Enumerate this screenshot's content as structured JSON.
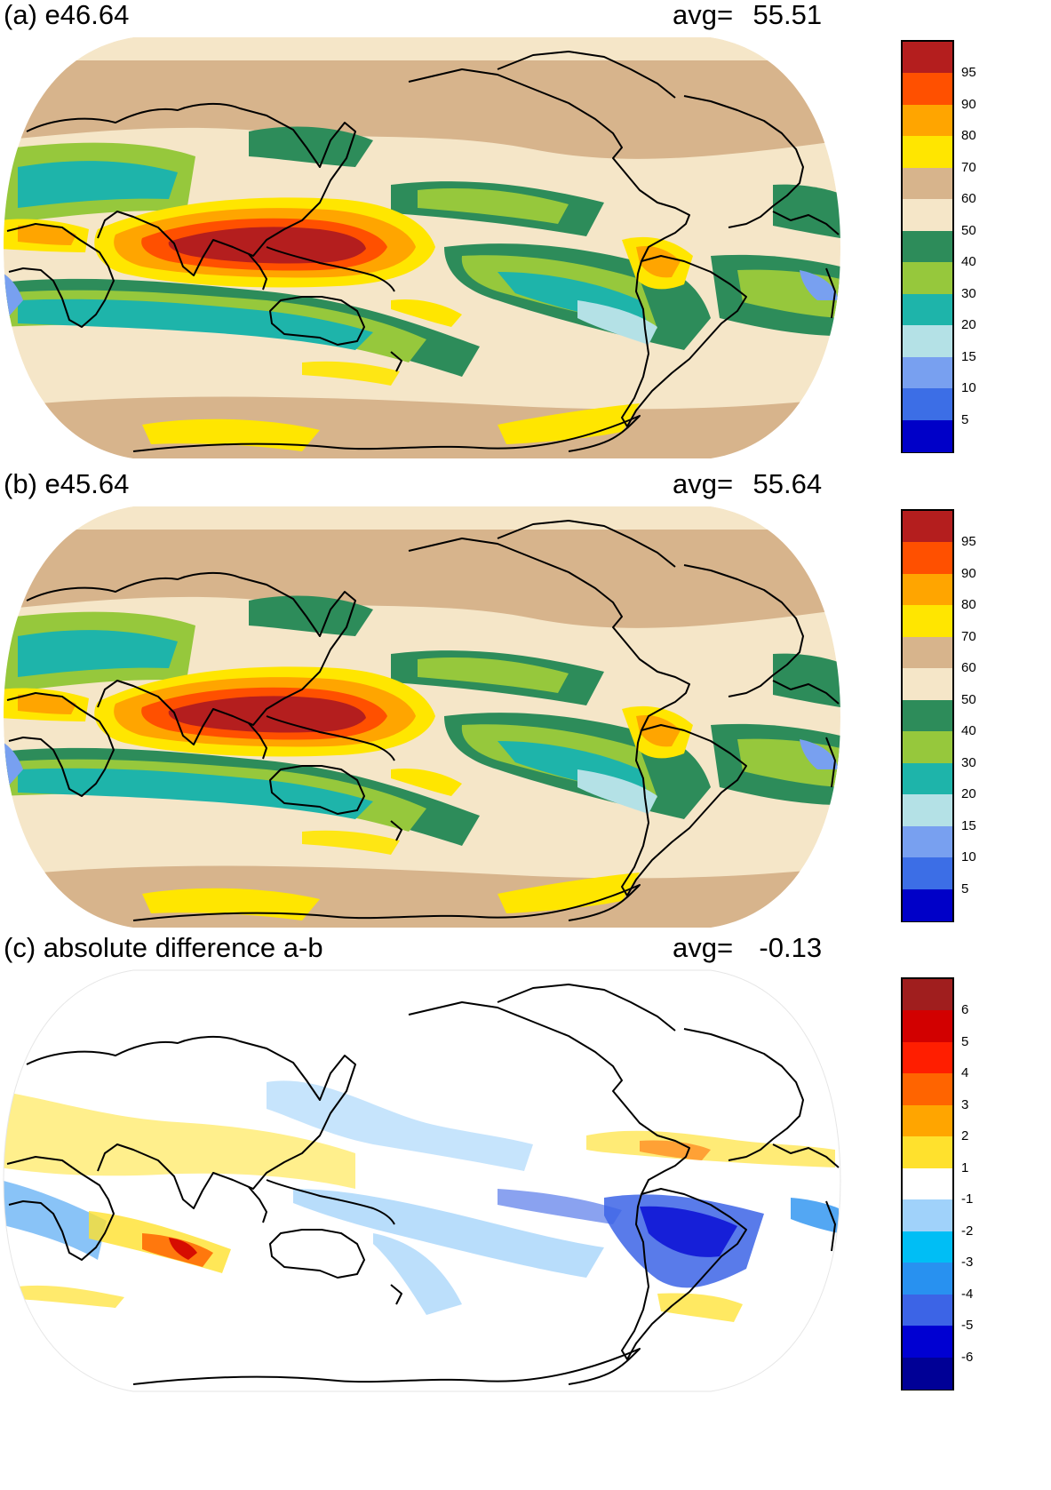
{
  "panels": [
    {
      "id": "a",
      "title": "(a) e46.64",
      "avg_label": "avg=",
      "avg_value": "55.51",
      "colorbar": {
        "colors": [
          "#0000c8",
          "#3c6ee6",
          "#78a0f0",
          "#b4e1e6",
          "#1eb4aa",
          "#96c83c",
          "#2d8c5a",
          "#f5e6c8",
          "#d7b48c",
          "#ffe600",
          "#ffa500",
          "#ff5000",
          "#b41e1e"
        ],
        "tick_labels": [
          "5",
          "10",
          "15",
          "20",
          "30",
          "40",
          "50",
          "60",
          "70",
          "80",
          "90",
          "95"
        ]
      }
    },
    {
      "id": "b",
      "title": "(b) e45.64",
      "avg_label": "avg=",
      "avg_value": "55.64",
      "colorbar": {
        "colors": [
          "#0000c8",
          "#3c6ee6",
          "#78a0f0",
          "#b4e1e6",
          "#1eb4aa",
          "#96c83c",
          "#2d8c5a",
          "#f5e6c8",
          "#d7b48c",
          "#ffe600",
          "#ffa500",
          "#ff5000",
          "#b41e1e"
        ],
        "tick_labels": [
          "5",
          "10",
          "15",
          "20",
          "30",
          "40",
          "50",
          "60",
          "70",
          "80",
          "90",
          "95"
        ]
      }
    },
    {
      "id": "c",
      "title": "(c) absolute difference a-b",
      "avg_label": "avg=",
      "avg_value": "-0.13",
      "colorbar": {
        "colors": [
          "#000096",
          "#0000d2",
          "#3c64e6",
          "#2891f0",
          "#00bef5",
          "#a0d2fa",
          "#ffffff",
          "#ffe12d",
          "#ffa500",
          "#ff6400",
          "#ff1e00",
          "#d20000",
          "#a01e1e"
        ],
        "tick_labels": [
          "-6",
          "-5",
          "-4",
          "-3",
          "-2",
          "-1",
          "1",
          "2",
          "3",
          "4",
          "5",
          "6"
        ]
      }
    }
  ]
}
